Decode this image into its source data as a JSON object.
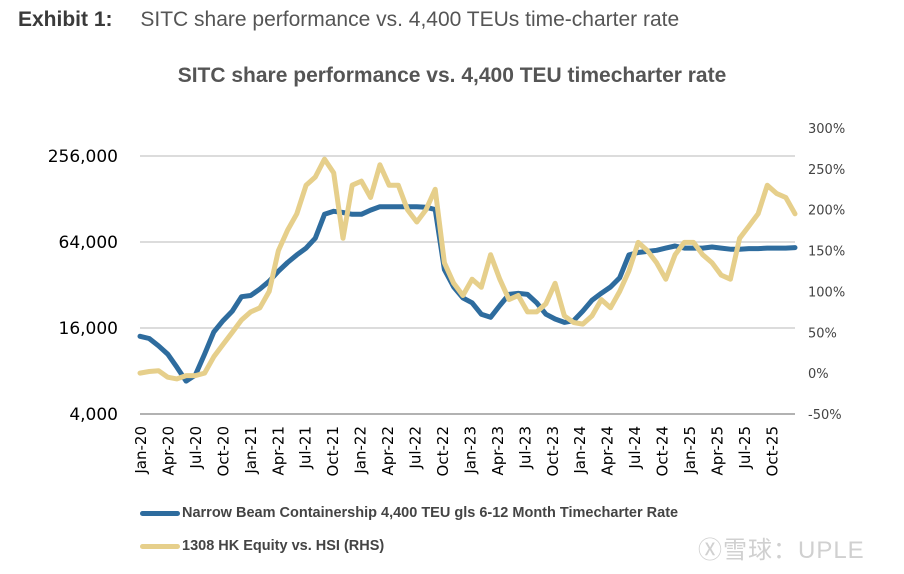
{
  "exhibit": {
    "label": "Exhibit 1:",
    "caption": "SITC share performance vs. 4,400 TEUs time-charter rate"
  },
  "watermark": "Ⓧ雪球：UPLE",
  "colors": {
    "rate": "#2e6c9e",
    "equity": "#e6cf8b",
    "grid": "#c8c8c8",
    "axis": "#999999"
  },
  "chart_data": {
    "type": "line",
    "title": "SITC share performance vs. 4,400 TEU timecharter rate",
    "xlabel": "",
    "ylabel_left": "",
    "ylabel_right": "",
    "grid": true,
    "legend_position": "bottom-left",
    "x_ticks": [
      "Jan-20",
      "Apr-20",
      "Jul-20",
      "Oct-20",
      "Jan-21",
      "Apr-21",
      "Jul-21",
      "Oct-21",
      "Jan-22",
      "Apr-22",
      "Jul-22",
      "Oct-22",
      "Jan-23",
      "Apr-23",
      "Jul-23",
      "Oct-23",
      "Jan-24",
      "Apr-24",
      "Jul-24",
      "Oct-24",
      "Jan-25",
      "Apr-25",
      "Jul-25",
      "Oct-25"
    ],
    "y_left": {
      "scale": "log2",
      "range": [
        4000,
        256000
      ],
      "ticks": [
        "4,000",
        "16,000",
        "64,000",
        "256,000"
      ],
      "tick_values": [
        4000,
        16000,
        64000,
        256000
      ]
    },
    "y_right": {
      "scale": "linear",
      "range": [
        -50,
        300
      ],
      "ticks": [
        "-50%",
        "0%",
        "50%",
        "100%",
        "150%",
        "200%",
        "250%",
        "300%"
      ],
      "tick_values": [
        -50,
        0,
        50,
        100,
        150,
        200,
        250,
        300
      ]
    },
    "x": [
      "Jan-20",
      "Feb-20",
      "Mar-20",
      "Apr-20",
      "May-20",
      "Jun-20",
      "Jul-20",
      "Aug-20",
      "Sep-20",
      "Oct-20",
      "Nov-20",
      "Dec-20",
      "Jan-21",
      "Feb-21",
      "Mar-21",
      "Apr-21",
      "May-21",
      "Jun-21",
      "Jul-21",
      "Aug-21",
      "Sep-21",
      "Oct-21",
      "Nov-21",
      "Dec-21",
      "Jan-22",
      "Feb-22",
      "Mar-22",
      "Apr-22",
      "May-22",
      "Jun-22",
      "Jul-22",
      "Aug-22",
      "Sep-22",
      "Oct-22",
      "Nov-22",
      "Dec-22",
      "Jan-23",
      "Feb-23",
      "Mar-23",
      "Apr-23",
      "May-23",
      "Jun-23",
      "Jul-23",
      "Aug-23",
      "Sep-23",
      "Oct-23",
      "Nov-23",
      "Dec-23",
      "Jan-24",
      "Feb-24",
      "Mar-24",
      "Apr-24",
      "May-24",
      "Jun-24",
      "Jul-24",
      "Aug-24",
      "Sep-24",
      "Oct-24",
      "Nov-24",
      "Dec-24",
      "Jan-25",
      "Feb-25",
      "Mar-25",
      "Apr-25",
      "May-25",
      "Jun-25",
      "Jul-25",
      "Aug-25",
      "Sep-25",
      "Oct-25",
      "Nov-25",
      "Dec-25"
    ],
    "series": [
      {
        "name": "Narrow Beam Containership 4,400 TEU gls 6-12 Month Timecharter Rate",
        "axis": "left",
        "values": [
          14000,
          13500,
          12000,
          10500,
          8500,
          6800,
          7500,
          10500,
          15000,
          18000,
          21000,
          26500,
          27000,
          30000,
          34000,
          40000,
          46000,
          52000,
          58000,
          68000,
          100000,
          105000,
          103000,
          100000,
          100000,
          107000,
          113000,
          113000,
          113000,
          113000,
          113000,
          112000,
          108000,
          41000,
          31000,
          26000,
          24000,
          20000,
          19000,
          23000,
          27500,
          28000,
          27500,
          24000,
          20000,
          18500,
          17500,
          18000,
          21000,
          25000,
          28000,
          31000,
          36000,
          52000,
          54000,
          55000,
          56000,
          58000,
          60000,
          58000,
          58000,
          58000,
          59000,
          58000,
          57000,
          57000,
          57500,
          57500,
          58000,
          58000,
          58000,
          58500
        ]
      },
      {
        "name": "1308 HK Equity vs. HSI (RHS)",
        "axis": "right",
        "values": [
          0,
          2,
          3,
          -5,
          -7,
          -3,
          -3,
          0,
          20,
          35,
          50,
          65,
          75,
          80,
          100,
          150,
          175,
          195,
          230,
          240,
          262,
          245,
          165,
          230,
          235,
          215,
          255,
          230,
          230,
          200,
          185,
          200,
          225,
          135,
          110,
          95,
          115,
          105,
          145,
          115,
          90,
          95,
          75,
          75,
          85,
          110,
          70,
          62,
          60,
          70,
          90,
          80,
          100,
          125,
          160,
          150,
          135,
          115,
          145,
          160,
          160,
          145,
          135,
          120,
          115,
          165,
          180,
          195,
          230,
          220,
          215,
          195
        ]
      }
    ]
  }
}
